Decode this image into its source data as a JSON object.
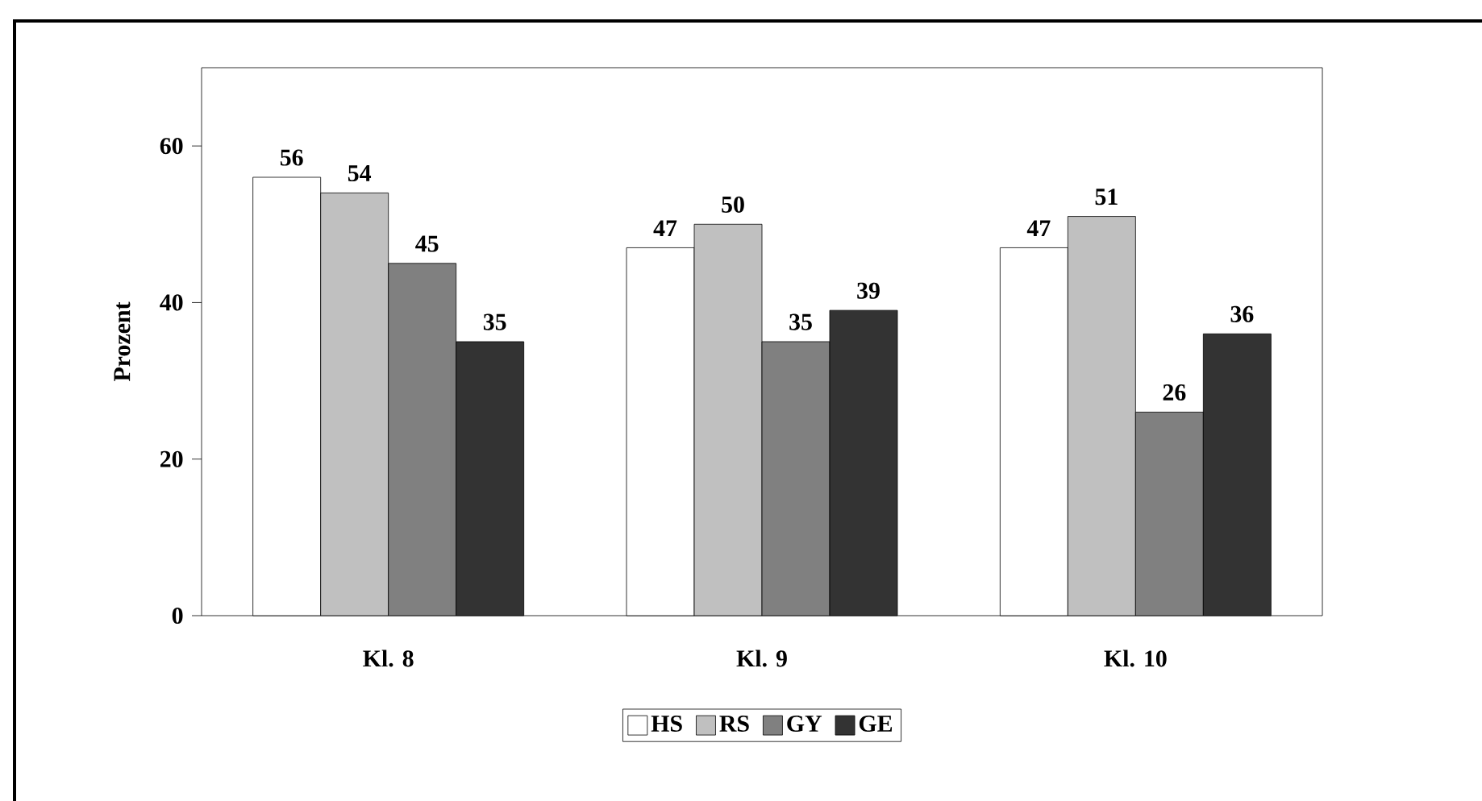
{
  "chart_data": {
    "type": "bar",
    "ylabel": "Prozent",
    "categories": [
      "Kl. 8",
      "Kl. 9",
      "Kl. 10"
    ],
    "series": [
      {
        "name": "HS",
        "color": "#ffffff",
        "values": [
          56,
          47,
          47
        ]
      },
      {
        "name": "RS",
        "color": "#c0c0c0",
        "values": [
          54,
          50,
          51
        ]
      },
      {
        "name": "GY",
        "color": "#808080",
        "values": [
          45,
          35,
          26
        ]
      },
      {
        "name": "GE",
        "color": "#333333",
        "values": [
          35,
          39,
          36
        ]
      }
    ],
    "ylim": [
      0,
      70
    ],
    "yticks": [
      0,
      20,
      40,
      60
    ],
    "data_labels": true,
    "legend": "bottom"
  }
}
